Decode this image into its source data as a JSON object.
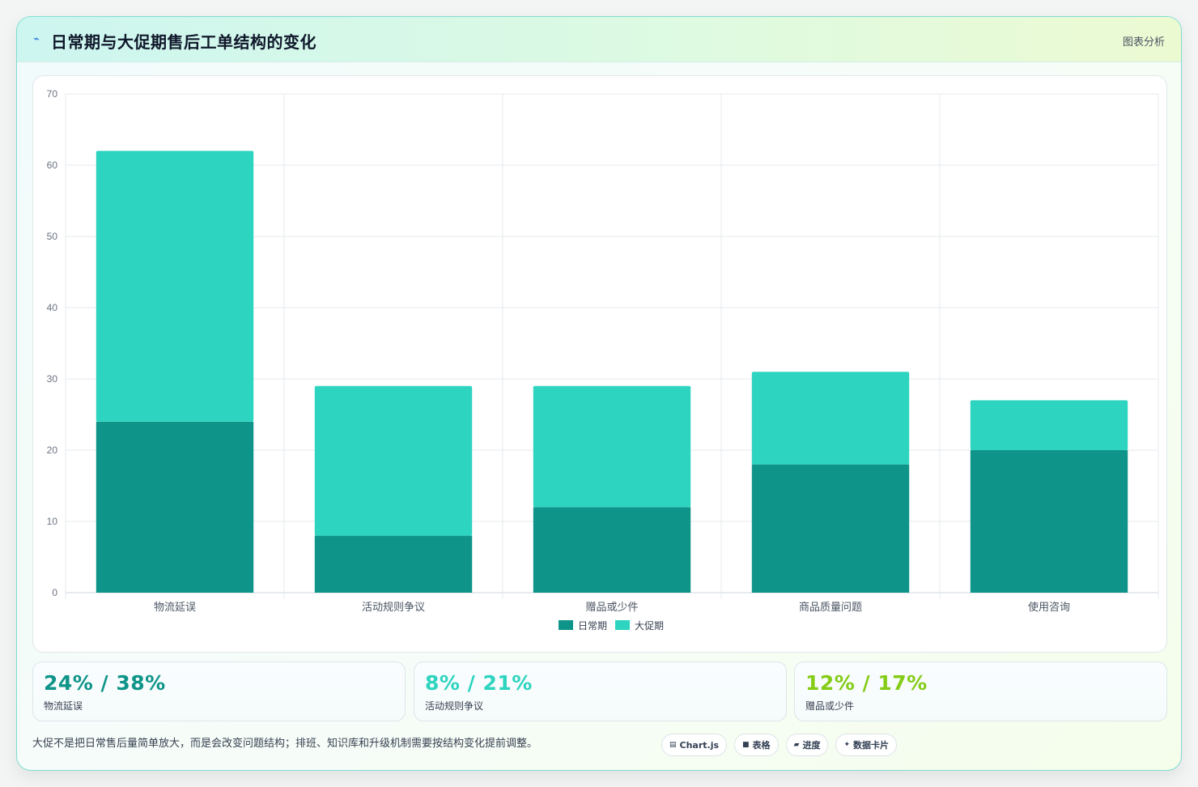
{
  "header": {
    "icon": "pulse-icon",
    "title": "日常期与大促期售后工单结构的变化",
    "tag": "图表分析"
  },
  "colors": {
    "daily": "#0e9488",
    "promo": "#2dd4bf",
    "stat1": "#0e9488",
    "stat2": "#2dd4bf",
    "stat3": "#84cc16"
  },
  "chart_data": {
    "type": "bar",
    "stacked": true,
    "categories": [
      "物流延误",
      "活动规则争议",
      "赠品或少件",
      "商品质量问题",
      "使用咨询"
    ],
    "series": [
      {
        "name": "日常期",
        "values": [
          24,
          8,
          12,
          18,
          20
        ]
      },
      {
        "name": "大促期",
        "values": [
          38,
          21,
          17,
          13,
          7
        ]
      }
    ],
    "ylim": [
      0,
      70
    ],
    "yticks": [
      0,
      10,
      20,
      30,
      40,
      50,
      60,
      70
    ],
    "grid": true,
    "legend": "bottom-center"
  },
  "stats": [
    {
      "value": "24% / 38%",
      "label": "物流延误"
    },
    {
      "value": "8% / 21%",
      "label": "活动规则争议"
    },
    {
      "value": "12% / 17%",
      "label": "赠品或少件"
    }
  ],
  "footnote": "大促不是把日常售后量简单放大，而是会改变问题结构；排班、知识库和升级机制需要按结构变化提前调整。",
  "chips": [
    {
      "icon": "chart-icon",
      "glyph": "▤",
      "label": "Chart.js"
    },
    {
      "icon": "table-icon",
      "glyph": "■",
      "label": "表格"
    },
    {
      "icon": "progress-icon",
      "glyph": "▰",
      "label": "进度"
    },
    {
      "icon": "sparkle-icon",
      "glyph": "✦",
      "label": "数据卡片"
    }
  ]
}
